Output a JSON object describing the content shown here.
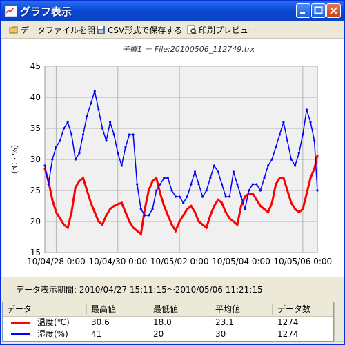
{
  "window": {
    "title": "グラフ表示"
  },
  "toolbar": {
    "open_label": "データファイルを開く",
    "save_label": "CSV形式で保存する",
    "preview_label": "印刷プレビュー"
  },
  "chart_data": {
    "type": "line",
    "title": "子機1 － File:20100506_112749.trx",
    "ylabel": "（℃・%）",
    "xlabel": "",
    "ylim": [
      15,
      45
    ],
    "yticks": [
      15,
      20,
      25,
      30,
      35,
      40,
      45
    ],
    "xticks": [
      "10/04/28 0:00",
      "10/04/30 0:00",
      "10/05/02 0:00",
      "10/05/04 0:00",
      "10/05/06 0:00"
    ],
    "grid": true,
    "series": [
      {
        "name": "温度(℃)",
        "color": "#ff0000",
        "x": [
          "2010-04-27 15:11",
          "2010-04-27 18:00",
          "2010-04-27 21:00",
          "2010-04-28 00:00",
          "2010-04-28 03:00",
          "2010-04-28 06:00",
          "2010-04-28 09:00",
          "2010-04-28 12:00",
          "2010-04-28 15:00",
          "2010-04-28 18:00",
          "2010-04-28 21:00",
          "2010-04-29 00:00",
          "2010-04-29 03:00",
          "2010-04-29 06:00",
          "2010-04-29 09:00",
          "2010-04-29 12:00",
          "2010-04-29 15:00",
          "2010-04-29 18:00",
          "2010-04-29 21:00",
          "2010-04-30 00:00",
          "2010-04-30 03:00",
          "2010-04-30 06:00",
          "2010-04-30 09:00",
          "2010-04-30 12:00",
          "2010-04-30 15:00",
          "2010-04-30 18:00",
          "2010-04-30 21:00",
          "2010-05-01 00:00",
          "2010-05-01 03:00",
          "2010-05-01 06:00",
          "2010-05-01 09:00",
          "2010-05-01 12:00",
          "2010-05-01 15:00",
          "2010-05-01 18:00",
          "2010-05-01 21:00",
          "2010-05-02 00:00",
          "2010-05-02 03:00",
          "2010-05-02 06:00",
          "2010-05-02 09:00",
          "2010-05-02 12:00",
          "2010-05-02 15:00",
          "2010-05-02 18:00",
          "2010-05-02 21:00",
          "2010-05-03 00:00",
          "2010-05-03 03:00",
          "2010-05-03 06:00",
          "2010-05-03 09:00",
          "2010-05-03 12:00",
          "2010-05-03 15:00",
          "2010-05-03 18:00",
          "2010-05-03 21:00",
          "2010-05-04 00:00",
          "2010-05-04 03:00",
          "2010-05-04 06:00",
          "2010-05-04 09:00",
          "2010-05-04 12:00",
          "2010-05-04 15:00",
          "2010-05-04 18:00",
          "2010-05-04 21:00",
          "2010-05-05 00:00",
          "2010-05-05 03:00",
          "2010-05-05 06:00",
          "2010-05-05 09:00",
          "2010-05-05 12:00",
          "2010-05-05 15:00",
          "2010-05-05 18:00",
          "2010-05-05 21:00",
          "2010-05-06 00:00",
          "2010-05-06 03:00",
          "2010-05-06 06:00",
          "2010-05-06 09:00",
          "2010-05-06 11:21"
        ],
        "values": [
          28.5,
          26.5,
          23.5,
          21.5,
          20.5,
          19.5,
          19.0,
          21.5,
          25.5,
          26.5,
          27.0,
          25.0,
          23.0,
          21.5,
          20.0,
          19.5,
          21.0,
          22.0,
          22.5,
          22.8,
          23.0,
          21.5,
          20.0,
          19.0,
          18.5,
          18.0,
          22.0,
          25.0,
          26.5,
          27.0,
          24.5,
          22.5,
          21.0,
          19.5,
          18.5,
          20.0,
          21.0,
          22.0,
          22.5,
          21.5,
          20.0,
          19.5,
          19.0,
          21.0,
          22.5,
          23.5,
          23.0,
          21.5,
          20.5,
          20.0,
          19.5,
          22.5,
          24.0,
          24.5,
          24.5,
          23.5,
          22.5,
          22.0,
          21.5,
          23.0,
          26.0,
          27.0,
          27.0,
          25.0,
          23.0,
          22.0,
          21.5,
          22.0,
          24.5,
          27.0,
          28.5,
          30.6
        ]
      },
      {
        "name": "湿度(%)",
        "color": "#0000ff",
        "x": [
          "2010-04-27 15:11",
          "2010-04-27 18:00",
          "2010-04-27 21:00",
          "2010-04-28 00:00",
          "2010-04-28 03:00",
          "2010-04-28 06:00",
          "2010-04-28 09:00",
          "2010-04-28 12:00",
          "2010-04-28 15:00",
          "2010-04-28 18:00",
          "2010-04-28 21:00",
          "2010-04-29 00:00",
          "2010-04-29 03:00",
          "2010-04-29 06:00",
          "2010-04-29 09:00",
          "2010-04-29 12:00",
          "2010-04-29 15:00",
          "2010-04-29 18:00",
          "2010-04-29 21:00",
          "2010-04-30 00:00",
          "2010-04-30 03:00",
          "2010-04-30 06:00",
          "2010-04-30 09:00",
          "2010-04-30 12:00",
          "2010-04-30 15:00",
          "2010-04-30 18:00",
          "2010-04-30 21:00",
          "2010-05-01 00:00",
          "2010-05-01 03:00",
          "2010-05-01 06:00",
          "2010-05-01 09:00",
          "2010-05-01 12:00",
          "2010-05-01 15:00",
          "2010-05-01 18:00",
          "2010-05-01 21:00",
          "2010-05-02 00:00",
          "2010-05-02 03:00",
          "2010-05-02 06:00",
          "2010-05-02 09:00",
          "2010-05-02 12:00",
          "2010-05-02 15:00",
          "2010-05-02 18:00",
          "2010-05-02 21:00",
          "2010-05-03 00:00",
          "2010-05-03 03:00",
          "2010-05-03 06:00",
          "2010-05-03 09:00",
          "2010-05-03 12:00",
          "2010-05-03 15:00",
          "2010-05-03 18:00",
          "2010-05-03 21:00",
          "2010-05-04 00:00",
          "2010-05-04 03:00",
          "2010-05-04 06:00",
          "2010-05-04 09:00",
          "2010-05-04 12:00",
          "2010-05-04 15:00",
          "2010-05-04 18:00",
          "2010-05-04 21:00",
          "2010-05-05 00:00",
          "2010-05-05 03:00",
          "2010-05-05 06:00",
          "2010-05-05 09:00",
          "2010-05-05 12:00",
          "2010-05-05 15:00",
          "2010-05-05 18:00",
          "2010-05-05 21:00",
          "2010-05-06 00:00",
          "2010-05-06 03:00",
          "2010-05-06 06:00",
          "2010-05-06 09:00",
          "2010-05-06 11:21"
        ],
        "values": [
          29,
          26,
          30,
          32,
          33,
          35,
          36,
          34,
          30,
          31,
          34,
          37,
          39,
          41,
          38,
          35,
          33,
          36,
          34,
          31,
          29,
          32,
          34,
          34,
          26,
          22,
          21,
          21,
          22,
          25,
          26,
          27,
          27,
          25,
          24,
          24,
          23,
          24,
          26,
          28,
          26,
          24,
          25,
          27,
          29,
          28,
          26,
          24,
          24,
          28,
          26,
          24,
          22,
          25,
          26,
          26,
          25,
          27,
          29,
          30,
          32,
          34,
          36,
          33,
          30,
          29,
          31,
          34,
          38,
          36,
          33,
          25
        ]
      }
    ]
  },
  "info": {
    "label": "データ表示期間:",
    "value": "2010/04/27 15:11:15〜2010/05/06 11:21:15"
  },
  "table": {
    "headers": [
      "データ",
      "最高値",
      "最低値",
      "平均値",
      "データ数"
    ],
    "rows": [
      {
        "name": "温度(℃)",
        "color": "#ff0000",
        "max": "30.6",
        "min": "18.0",
        "avg": "23.1",
        "count": "1274"
      },
      {
        "name": "湿度(%)",
        "color": "#0000ff",
        "max": "41",
        "min": "20",
        "avg": "30",
        "count": "1274"
      }
    ]
  }
}
